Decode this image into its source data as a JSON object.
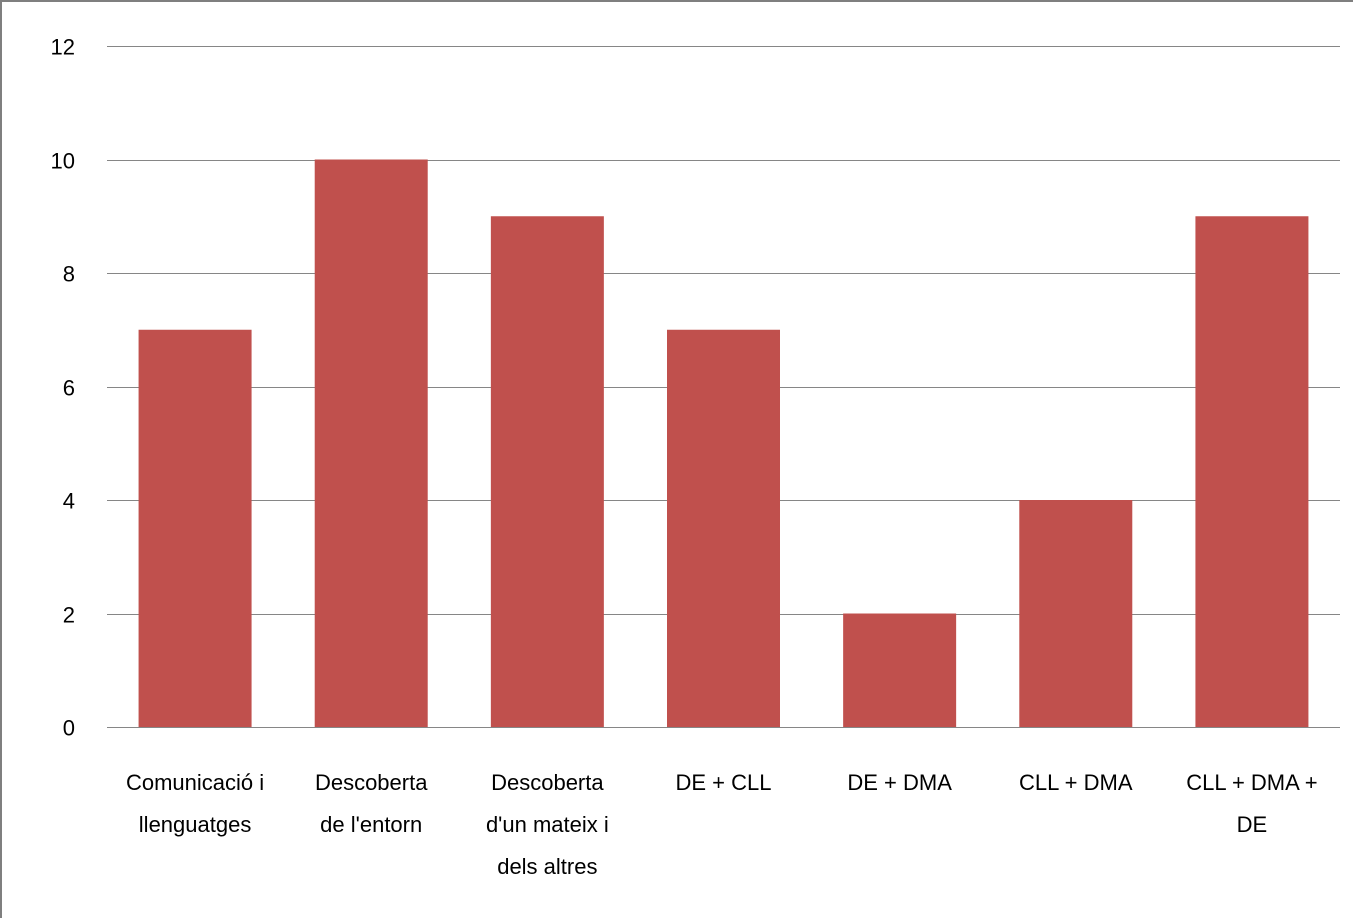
{
  "chart_data": {
    "type": "bar",
    "categories": [
      [
        "Comunicació i",
        "llenguatges"
      ],
      [
        "Descoberta",
        "de l'entorn"
      ],
      [
        "Descoberta",
        "d'un mateix i",
        "dels altres"
      ],
      [
        "DE + CLL"
      ],
      [
        "DE + DMA"
      ],
      [
        "CLL + DMA"
      ],
      [
        "CLL + DMA +",
        "DE"
      ]
    ],
    "values": [
      7,
      10,
      9,
      7,
      2,
      4,
      9
    ],
    "ylim": [
      0,
      12
    ],
    "yticks": [
      "0",
      "2",
      "4",
      "6",
      "8",
      "10",
      "12"
    ],
    "grid": true,
    "bar_color": "#c0504d",
    "grid_color": "#868686"
  }
}
